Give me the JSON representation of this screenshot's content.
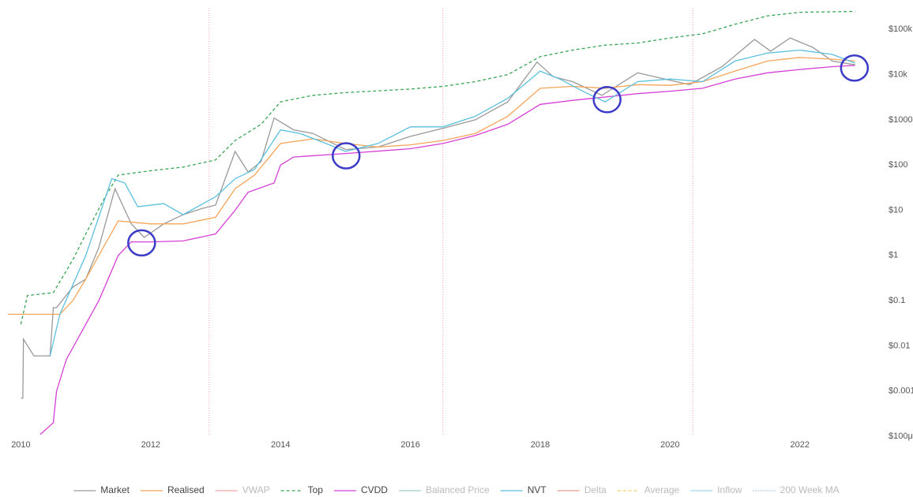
{
  "chart_data": {
    "type": "line",
    "log_y": true,
    "xlim": [
      2009.8,
      2023
    ],
    "xticks": [
      2010,
      2012,
      2014,
      2016,
      2018,
      2020,
      2022
    ],
    "ylim": [
      0.0001,
      300000
    ],
    "yticks": [
      {
        "value": 0.0001,
        "label": "$100μ"
      },
      {
        "value": 0.001,
        "label": "$0.001"
      },
      {
        "value": 0.01,
        "label": "$0.01"
      },
      {
        "value": 0.1,
        "label": "$0.1"
      },
      {
        "value": 1,
        "label": "$1"
      },
      {
        "value": 10,
        "label": "$10"
      },
      {
        "value": 100,
        "label": "$100"
      },
      {
        "value": 1000,
        "label": "$1000"
      },
      {
        "value": 10000,
        "label": "$10k"
      },
      {
        "value": 100000,
        "label": "$100k"
      }
    ],
    "halvings": [
      2012.9,
      2016.5,
      2020.35
    ],
    "circles": [
      {
        "x": 2011.86,
        "y": 1.9
      },
      {
        "x": 2015.01,
        "y": 160
      },
      {
        "x": 2019.03,
        "y": 2800
      },
      {
        "x": 2022.84,
        "y": 14000
      }
    ],
    "series": [
      {
        "name": "Market",
        "color": "#999999",
        "dash": "solid",
        "x": [
          2010.0,
          2010.03,
          2010.04,
          2010.2,
          2010.45,
          2010.5,
          2010.55,
          2010.8,
          2011.0,
          2011.2,
          2011.45,
          2011.7,
          2011.9,
          2012.2,
          2012.5,
          2012.8,
          2013.0,
          2013.3,
          2013.5,
          2013.7,
          2013.9,
          2014.2,
          2014.5,
          2015.0,
          2015.5,
          2016.0,
          2016.5,
          2017.0,
          2017.5,
          2017.95,
          2018.2,
          2018.5,
          2018.95,
          2019.5,
          2020.0,
          2020.3,
          2020.8,
          2021.3,
          2021.55,
          2021.85,
          2022.2,
          2022.5,
          2022.85
        ],
        "values": [
          0.0007,
          0.0007,
          0.014,
          0.006,
          0.006,
          0.07,
          0.07,
          0.2,
          0.3,
          1.5,
          30,
          5,
          2.5,
          5,
          8,
          11,
          13,
          200,
          70,
          120,
          1100,
          600,
          500,
          220,
          250,
          430,
          650,
          1000,
          2500,
          19000,
          9000,
          7000,
          3500,
          11000,
          7500,
          6000,
          15000,
          60000,
          33000,
          65000,
          40000,
          20000,
          16500
        ]
      },
      {
        "name": "Realised",
        "color": "#f5a55a",
        "dash": "solid",
        "x": [
          2009.8,
          2010.6,
          2010.8,
          2011.0,
          2011.2,
          2011.5,
          2012.0,
          2012.5,
          2013.0,
          2013.3,
          2013.6,
          2014.0,
          2014.5,
          2015.0,
          2015.5,
          2016.0,
          2016.5,
          2017.0,
          2017.5,
          2018.0,
          2018.5,
          2019.0,
          2019.5,
          2020.0,
          2020.5,
          2021.0,
          2021.5,
          2022.0,
          2022.5,
          2022.85
        ],
        "values": [
          0.05,
          0.05,
          0.1,
          0.3,
          1,
          5.8,
          5,
          5,
          7,
          30,
          60,
          300,
          380,
          300,
          250,
          280,
          350,
          500,
          1200,
          5000,
          5500,
          5000,
          6000,
          5800,
          7000,
          12000,
          20000,
          24000,
          22000,
          20000
        ]
      },
      {
        "name": "VWAP",
        "color": "#f4a6a6",
        "dash": "solid",
        "hidden": true
      },
      {
        "name": "Top",
        "color": "#3aa655",
        "dash": "dashed",
        "x": [
          2010.0,
          2010.1,
          2010.5,
          2010.8,
          2011.0,
          2011.3,
          2011.5,
          2012.0,
          2012.5,
          2013.0,
          2013.3,
          2013.7,
          2014.0,
          2014.5,
          2015.0,
          2016.0,
          2016.5,
          2017.0,
          2017.5,
          2018.0,
          2018.5,
          2019.0,
          2019.5,
          2020.0,
          2020.5,
          2021.0,
          2021.5,
          2022.0,
          2022.85
        ],
        "values": [
          0.03,
          0.13,
          0.15,
          0.8,
          3,
          20,
          60,
          75,
          90,
          130,
          350,
          800,
          2500,
          3500,
          4000,
          4800,
          5500,
          7000,
          10000,
          25000,
          35000,
          45000,
          50000,
          65000,
          80000,
          130000,
          200000,
          240000,
          250000
        ]
      },
      {
        "name": "CVDD",
        "color": "#d63fd6",
        "dash": "solid",
        "x": [
          2010.3,
          2010.5,
          2010.55,
          2010.7,
          2011.0,
          2011.2,
          2011.5,
          2011.7,
          2012.0,
          2012.5,
          2013.0,
          2013.3,
          2013.5,
          2013.9,
          2014.0,
          2014.2,
          2015.0,
          2016.0,
          2016.5,
          2017.0,
          2017.5,
          2018.0,
          2018.5,
          2019.0,
          2019.5,
          2020.0,
          2020.5,
          2021.0,
          2021.5,
          2022.0,
          2022.5,
          2022.85
        ],
        "values": [
          0.00011,
          0.0002,
          0.001,
          0.005,
          0.03,
          0.1,
          1,
          2,
          2,
          2.1,
          3,
          10,
          25,
          40,
          100,
          150,
          180,
          230,
          300,
          450,
          800,
          2200,
          2700,
          3200,
          3800,
          4300,
          5000,
          8000,
          11000,
          13000,
          15000,
          16000
        ]
      },
      {
        "name": "Balanced Price",
        "color": "#9fcfc8",
        "dash": "solid",
        "hidden": true
      },
      {
        "name": "NVT",
        "color": "#5bc0de",
        "dash": "solid",
        "x": [
          2010.45,
          2010.6,
          2011.0,
          2011.4,
          2011.6,
          2011.8,
          2012.2,
          2012.5,
          2013.0,
          2013.3,
          2013.6,
          2014.0,
          2014.3,
          2014.7,
          2015.0,
          2015.5,
          2016.0,
          2016.5,
          2017.0,
          2017.5,
          2018.0,
          2018.3,
          2018.7,
          2019.0,
          2019.5,
          2020.0,
          2020.5,
          2021.0,
          2021.5,
          2022.0,
          2022.5,
          2022.85
        ],
        "values": [
          0.006,
          0.05,
          1,
          50,
          40,
          12,
          14,
          8,
          20,
          50,
          80,
          600,
          500,
          300,
          200,
          300,
          700,
          700,
          1200,
          3000,
          12000,
          8000,
          4000,
          2500,
          7000,
          8000,
          7000,
          20000,
          30000,
          35000,
          28000,
          18000
        ]
      },
      {
        "name": "Delta",
        "color": "#e8a090",
        "dash": "solid",
        "hidden": true
      },
      {
        "name": "Average",
        "color": "#f0d060",
        "dash": "dashed",
        "hidden": true
      },
      {
        "name": "Inflow",
        "color": "#9fd8ee",
        "dash": "solid",
        "hidden": true
      },
      {
        "name": "200 Week MA",
        "color": "#6fa8dc",
        "dash": "dotted",
        "hidden": true
      }
    ]
  }
}
